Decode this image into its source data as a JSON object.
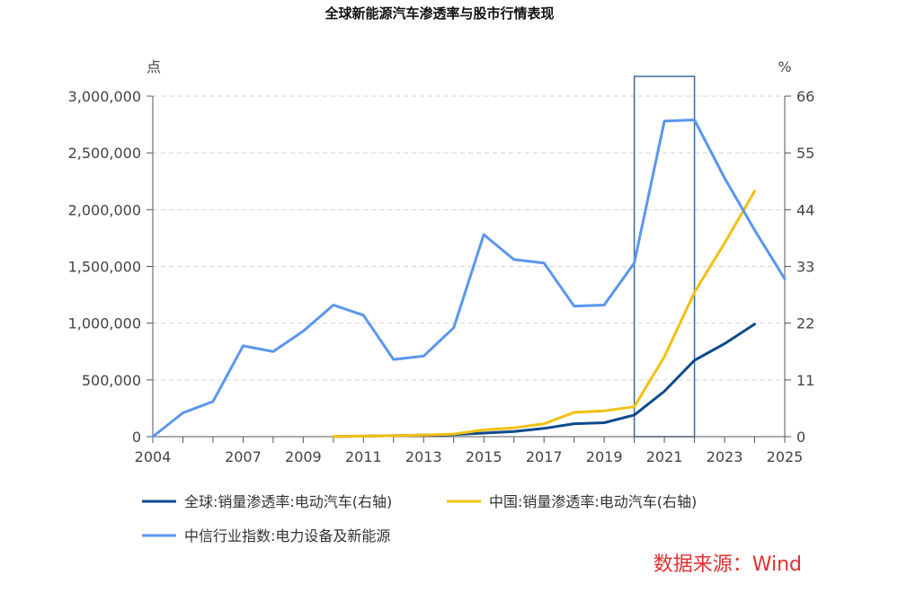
{
  "chart_data": {
    "type": "line",
    "title": "全球新能源汽车渗透率与股市行情表现",
    "left_unit": "点",
    "right_unit": "%",
    "x_ticks": [
      "2004",
      "2007",
      "2009",
      "2011",
      "2013",
      "2015",
      "2017",
      "2019",
      "2021",
      "2023",
      "2025"
    ],
    "xlim": [
      2004,
      2025
    ],
    "ylim_left": [
      0,
      3000000
    ],
    "left_ticks": [
      "0",
      "500,000",
      "1,000,000",
      "1,500,000",
      "2,000,000",
      "2,500,000",
      "3,000,000"
    ],
    "left_tick_values": [
      0,
      500000,
      1000000,
      1500000,
      2000000,
      2500000,
      3000000
    ],
    "ylim_right": [
      0,
      66
    ],
    "right_ticks": [
      "0",
      "11",
      "22",
      "33",
      "44",
      "55",
      "66"
    ],
    "right_tick_values": [
      0,
      11,
      22,
      33,
      44,
      55,
      66
    ],
    "series": [
      {
        "name": "全球:销量渗透率:电动汽车(右轴)",
        "axis": "right",
        "color": "#0c4a8c",
        "x": [
          2010,
          2011,
          2012,
          2013,
          2014,
          2015,
          2016,
          2017,
          2018,
          2019,
          2020,
          2021,
          2022,
          2023,
          2024
        ],
        "values": [
          0.01,
          0.1,
          0.2,
          0.3,
          0.4,
          0.7,
          1.0,
          1.6,
          2.5,
          2.7,
          4.2,
          8.8,
          14.8,
          18.0,
          21.8
        ]
      },
      {
        "name": "中国:销量渗透率:电动汽车(右轴)",
        "axis": "right",
        "color": "#f2c010",
        "x": [
          2010,
          2011,
          2012,
          2013,
          2014,
          2015,
          2016,
          2017,
          2018,
          2019,
          2020,
          2021,
          2022,
          2023,
          2024
        ],
        "values": [
          0.01,
          0.1,
          0.2,
          0.3,
          0.5,
          1.3,
          1.7,
          2.5,
          4.7,
          5.0,
          5.8,
          15.5,
          28.0,
          37.5,
          47.6
        ]
      },
      {
        "name": "中信行业指数:电力设备及新能源",
        "axis": "left",
        "color": "#5a96ee",
        "x": [
          2004,
          2005,
          2006,
          2007,
          2008,
          2009,
          2010,
          2011,
          2012,
          2013,
          2014,
          2015,
          2016,
          2017,
          2018,
          2019,
          2020,
          2021,
          2022,
          2023,
          2024,
          2025
        ],
        "values": [
          0,
          210000,
          310000,
          800000,
          750000,
          930000,
          1160000,
          1070000,
          680000,
          710000,
          960000,
          1780000,
          1560000,
          1530000,
          1150000,
          1160000,
          1530000,
          2780000,
          2790000,
          2280000,
          1820000,
          1390000
        ]
      }
    ],
    "highlight_range": [
      2020,
      2022
    ],
    "highlight_color": "#3a6a9a",
    "grid": true,
    "legend_position": "bottom-left"
  },
  "legend": [
    {
      "label": "全球:销量渗透率:电动汽车(右轴)",
      "color": "#0c4a8c"
    },
    {
      "label": "中国:销量渗透率:电动汽车(右轴)",
      "color": "#f2c010"
    },
    {
      "label": "中信行业指数:电力设备及新能源",
      "color": "#5a96ee"
    }
  ],
  "source_note": "数据来源：Wind"
}
